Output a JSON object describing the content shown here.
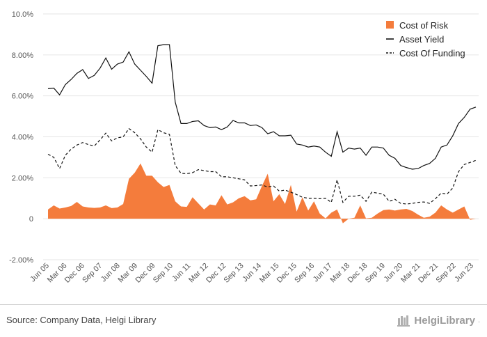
{
  "chart_data": {
    "type": "line",
    "title": "",
    "y_axis": {
      "min": -2,
      "max": 10,
      "step": 2,
      "unit": "%",
      "tick_labels": [
        "-2.00%",
        "0",
        "2.00%",
        "4.00%",
        "6.00%",
        "8.00%",
        "10.0%"
      ]
    },
    "x_tick_labels": [
      "Jun 05",
      "Mar 06",
      "Dec 06",
      "Sep 07",
      "Jun 08",
      "Mar 09",
      "Dec 09",
      "Sep 10",
      "Jun 11",
      "Mar 12",
      "Dec 12",
      "Sep 13",
      "Jun 14",
      "Mar 15",
      "Dec 15",
      "Sep 16",
      "Jun 17",
      "Mar 18",
      "Dec 18",
      "Sep 19",
      "Jun 20",
      "Mar 21",
      "Dec 21",
      "Sep 22",
      "Jun 23"
    ],
    "legend_position": "top-right",
    "grid": "horizontal",
    "series": [
      {
        "name": "Cost of Risk",
        "style": "area",
        "color": "#f47c3c",
        "values": [
          0.45,
          0.65,
          0.5,
          0.55,
          0.62,
          0.82,
          0.6,
          0.55,
          0.53,
          0.55,
          0.65,
          0.52,
          0.55,
          0.72,
          1.95,
          2.25,
          2.7,
          2.1,
          2.1,
          1.78,
          1.55,
          1.65,
          0.85,
          0.6,
          0.58,
          1.05,
          0.75,
          0.45,
          0.7,
          0.65,
          1.15,
          0.7,
          0.8,
          1.0,
          1.1,
          0.9,
          0.95,
          1.6,
          2.2,
          0.85,
          1.2,
          0.72,
          1.65,
          0.35,
          1.05,
          0.4,
          0.85,
          0.25,
          0.02,
          0.3,
          0.45,
          -0.22,
          0.0,
          0.05,
          0.65,
          0.02,
          0.05,
          0.25,
          0.42,
          0.45,
          0.4,
          0.45,
          0.48,
          0.38,
          0.2,
          0.05,
          0.1,
          0.3,
          0.65,
          0.45,
          0.3,
          0.45,
          0.6,
          -0.05,
          0.0
        ]
      },
      {
        "name": "Asset Yield",
        "style": "solid",
        "color": "#111111",
        "values": [
          6.35,
          6.38,
          6.05,
          6.55,
          6.8,
          7.1,
          7.28,
          6.85,
          7.0,
          7.35,
          7.85,
          7.3,
          7.55,
          7.65,
          8.15,
          7.55,
          7.25,
          6.95,
          6.62,
          8.45,
          8.5,
          8.5,
          5.7,
          4.65,
          4.65,
          4.75,
          4.78,
          4.55,
          4.45,
          4.48,
          4.35,
          4.48,
          4.8,
          4.68,
          4.68,
          4.55,
          4.58,
          4.45,
          4.15,
          4.25,
          4.05,
          4.05,
          4.08,
          3.65,
          3.6,
          3.5,
          3.55,
          3.5,
          3.25,
          3.05,
          4.25,
          3.25,
          3.45,
          3.4,
          3.45,
          3.1,
          3.5,
          3.5,
          3.45,
          3.1,
          2.95,
          2.6,
          2.5,
          2.42,
          2.45,
          2.6,
          2.7,
          2.95,
          3.5,
          3.6,
          4.05,
          4.65,
          4.95,
          5.35,
          5.45
        ]
      },
      {
        "name": "Cost Of Funding",
        "style": "dashed",
        "color": "#111111",
        "values": [
          3.15,
          3.0,
          2.45,
          3.1,
          3.4,
          3.6,
          3.72,
          3.62,
          3.55,
          3.85,
          4.18,
          3.8,
          3.95,
          4.0,
          4.4,
          4.2,
          3.9,
          3.5,
          3.25,
          4.35,
          4.2,
          4.12,
          2.6,
          2.22,
          2.2,
          2.25,
          2.4,
          2.35,
          2.3,
          2.3,
          2.05,
          2.05,
          2.0,
          1.95,
          1.9,
          1.6,
          1.62,
          1.65,
          1.55,
          1.6,
          1.35,
          1.4,
          1.3,
          1.18,
          1.05,
          1.0,
          1.0,
          0.98,
          1.0,
          0.8,
          1.9,
          0.8,
          1.1,
          1.1,
          1.15,
          0.85,
          1.3,
          1.25,
          1.2,
          0.85,
          0.95,
          0.75,
          0.72,
          0.75,
          0.8,
          0.82,
          0.75,
          0.98,
          1.25,
          1.2,
          1.5,
          2.3,
          2.65,
          2.75,
          2.85
        ]
      }
    ]
  },
  "footer": {
    "source": "Source: Company Data, Helgi Library",
    "brand": "HelgiLibrary",
    "brand_dot": "."
  }
}
